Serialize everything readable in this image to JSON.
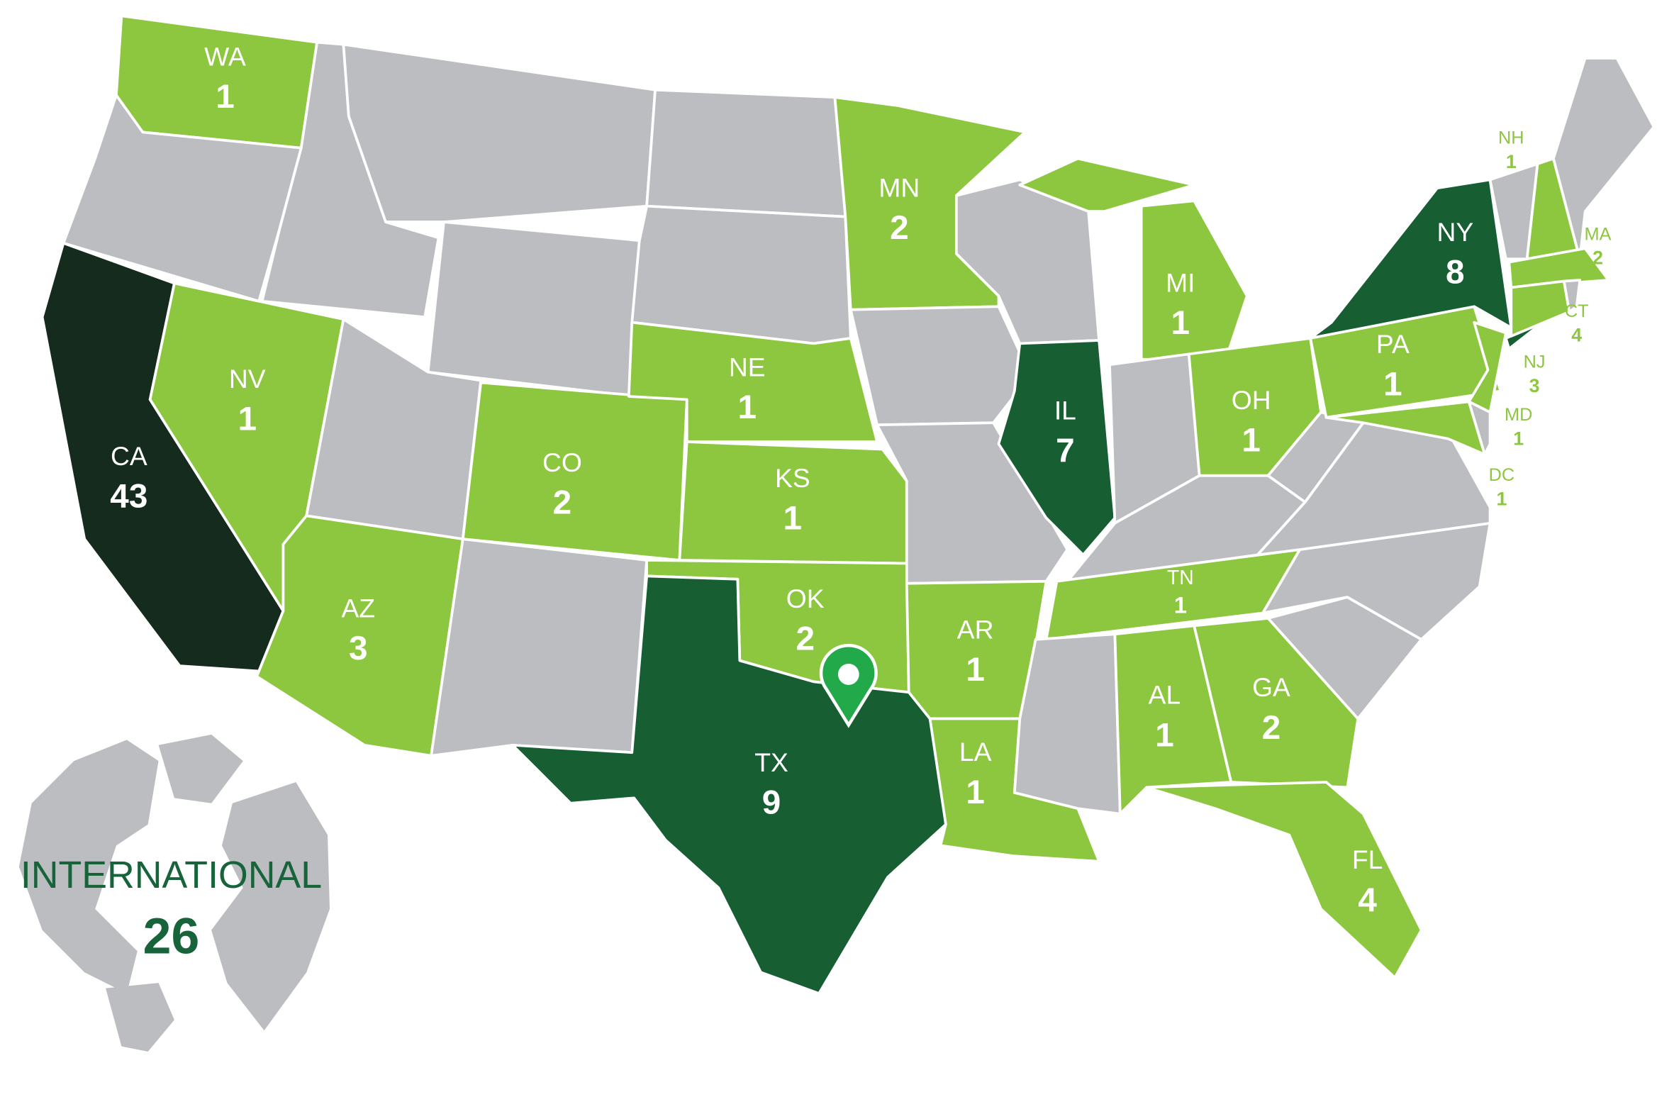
{
  "colors": {
    "none": "#bcbdc1",
    "low": "#8dc63f",
    "mid": "#175e33",
    "high": "#142b1e",
    "pin": "#22a94a",
    "border": "#ffffff"
  },
  "states": [
    {
      "abbr": "WA",
      "count": "1",
      "tier": "low"
    },
    {
      "abbr": "NV",
      "count": "1",
      "tier": "low"
    },
    {
      "abbr": "CA",
      "count": "43",
      "tier": "high"
    },
    {
      "abbr": "AZ",
      "count": "3",
      "tier": "low"
    },
    {
      "abbr": "CO",
      "count": "2",
      "tier": "low"
    },
    {
      "abbr": "NE",
      "count": "1",
      "tier": "low"
    },
    {
      "abbr": "KS",
      "count": "1",
      "tier": "low"
    },
    {
      "abbr": "OK",
      "count": "2",
      "tier": "low"
    },
    {
      "abbr": "TX",
      "count": "9",
      "tier": "mid"
    },
    {
      "abbr": "MN",
      "count": "2",
      "tier": "low"
    },
    {
      "abbr": "AR",
      "count": "1",
      "tier": "low"
    },
    {
      "abbr": "LA",
      "count": "1",
      "tier": "low"
    },
    {
      "abbr": "IL",
      "count": "7",
      "tier": "mid"
    },
    {
      "abbr": "MI",
      "count": "1",
      "tier": "low"
    },
    {
      "abbr": "OH",
      "count": "1",
      "tier": "low"
    },
    {
      "abbr": "TN",
      "count": "1",
      "tier": "low"
    },
    {
      "abbr": "AL",
      "count": "1",
      "tier": "low"
    },
    {
      "abbr": "GA",
      "count": "2",
      "tier": "low"
    },
    {
      "abbr": "FL",
      "count": "4",
      "tier": "low"
    },
    {
      "abbr": "PA",
      "count": "1",
      "tier": "low"
    },
    {
      "abbr": "NY",
      "count": "8",
      "tier": "mid"
    },
    {
      "abbr": "NH",
      "count": "1",
      "tier": "low"
    },
    {
      "abbr": "MA",
      "count": "2",
      "tier": "low"
    },
    {
      "abbr": "CT",
      "count": "4",
      "tier": "low"
    },
    {
      "abbr": "NJ",
      "count": "3",
      "tier": "low"
    },
    {
      "abbr": "MD",
      "count": "1",
      "tier": "low"
    },
    {
      "abbr": "DC",
      "count": "1",
      "tier": "low"
    }
  ],
  "international": {
    "label": "INTERNATIONAL",
    "count": "26"
  },
  "pin": {
    "icon": "map-pin-icon"
  }
}
